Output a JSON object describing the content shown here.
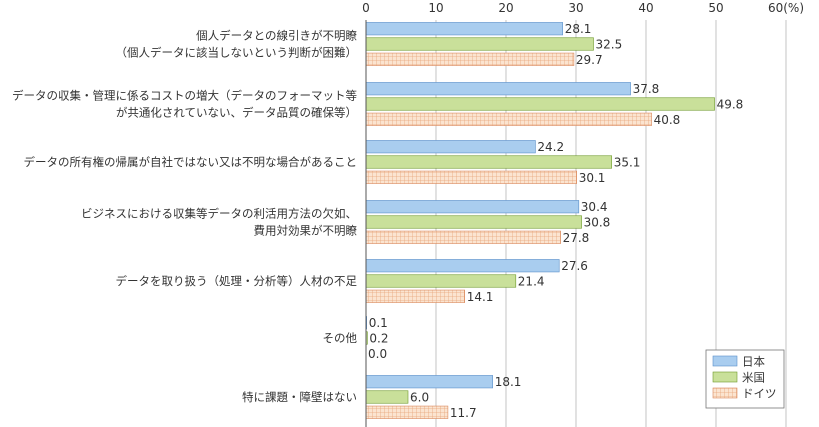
{
  "chart_data": {
    "type": "bar",
    "orientation": "horizontal",
    "unit": "(%)",
    "xlim": [
      0,
      60
    ],
    "ticks": [
      0,
      10,
      20,
      30,
      40,
      50,
      60
    ],
    "tick_labels": [
      "0",
      "10",
      "20",
      "30",
      "40",
      "50",
      "60(%)"
    ],
    "grid": true,
    "legend_position": "bottom-right",
    "categories": [
      [
        "個人データとの線引きが不明瞭",
        "（個人データに該当しないという判断が困難）"
      ],
      [
        "データの収集・管理に係るコストの増大（データのフォーマット等",
        "が共通化されていない、データ品質の確保等）"
      ],
      [
        "データの所有権の帰属が自社ではない又は不明な場合があること"
      ],
      [
        "ビジネスにおける収集等データの利活用方法の欠如、",
        "費用対効果が不明瞭"
      ],
      [
        "データを取り扱う（処理・分析等）人材の不足"
      ],
      [
        "その他"
      ],
      [
        "特に課題・障壁はない"
      ]
    ],
    "series": [
      {
        "name": "日本",
        "color": "#a9cdef",
        "values": [
          28.1,
          37.8,
          24.2,
          30.4,
          27.6,
          0.1,
          18.1
        ]
      },
      {
        "name": "米国",
        "color": "#c9e09a",
        "values": [
          32.5,
          49.8,
          35.1,
          30.8,
          21.4,
          0.2,
          6.0
        ]
      },
      {
        "name": "ドイツ",
        "color": "#f6c8a6",
        "pattern": "grid",
        "values": [
          29.7,
          40.8,
          30.1,
          27.8,
          14.1,
          0.0,
          11.7
        ]
      }
    ],
    "value_labels": [
      [
        "28.1",
        "37.8",
        "24.2",
        "30.4",
        "27.6",
        "0.1",
        "18.1"
      ],
      [
        "32.5",
        "49.8",
        "35.1",
        "30.8",
        "21.4",
        "0.2",
        "6.0"
      ],
      [
        "29.7",
        "40.8",
        "30.1",
        "27.8",
        "14.1",
        "0.0",
        "11.7"
      ]
    ]
  }
}
